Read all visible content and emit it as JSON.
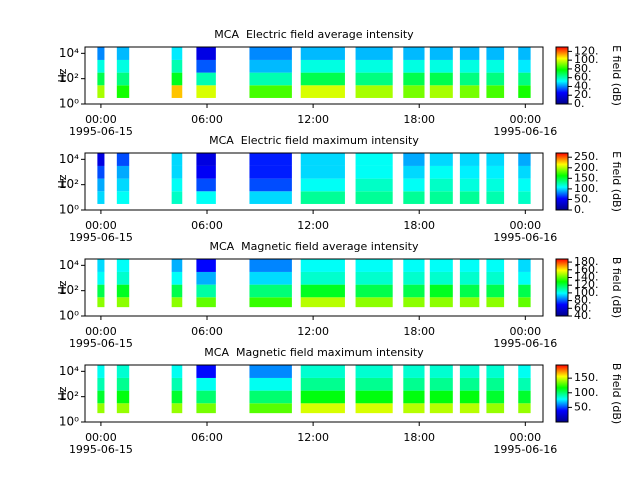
{
  "chart_data": [
    {
      "type": "spectrogram",
      "title": "MCA  Electric field average intensity",
      "ylabel": "Hz",
      "colorbar_label": "E field (dB)",
      "xlim": [
        -0.9,
        25
      ],
      "xticks": [
        {
          "value": 0,
          "label": "00:00"
        },
        {
          "value": 6,
          "label": "06:00"
        },
        {
          "value": 12,
          "label": "12:00"
        },
        {
          "value": 18,
          "label": "18:00"
        },
        {
          "value": 24,
          "label": "00:00"
        }
      ],
      "date_labels": [
        {
          "value": 0,
          "label": "1995-06-15"
        },
        {
          "value": 24,
          "label": "1995-06-16"
        }
      ],
      "log_y": true,
      "ylim": [
        1,
        31623
      ],
      "yticks": [
        {
          "value": 1,
          "label": "10⁰"
        },
        {
          "value": 100,
          "label": "10²"
        },
        {
          "value": 10000,
          "label": "10⁴"
        }
      ],
      "clim": [
        0,
        130
      ],
      "cticks": [
        {
          "value": 0,
          "label": "0."
        },
        {
          "value": 20,
          "label": "20."
        },
        {
          "value": 40,
          "label": "40."
        },
        {
          "value": 60,
          "label": "60."
        },
        {
          "value": 80,
          "label": "80."
        },
        {
          "value": 100,
          "label": "100."
        },
        {
          "value": 120,
          "label": "120."
        }
      ],
      "colormap": [
        "#00008b",
        "#0000ff",
        "#00ffff",
        "#00ff00",
        "#ffff00",
        "#ff0000"
      ],
      "segments": [
        [
          -0.2,
          0.2
        ],
        [
          0.9,
          1.6
        ],
        [
          4.0,
          4.6
        ],
        [
          5.4,
          6.5
        ],
        [
          8.4,
          10.8
        ],
        [
          11.3,
          13.8
        ],
        [
          14.4,
          16.5
        ],
        [
          17.1,
          18.3
        ],
        [
          18.6,
          19.9
        ],
        [
          20.3,
          21.4
        ],
        [
          21.8,
          22.8
        ],
        [
          23.6,
          24.3
        ]
      ],
      "freq_edges": [
        3,
        30,
        300,
        3000,
        30000
      ],
      "z": [
        [
          95,
          70,
          55,
          40
        ],
        [
          80,
          65,
          55,
          45
        ],
        [
          110,
          75,
          60,
          50
        ],
        [
          100,
          60,
          35,
          20
        ],
        [
          85,
          60,
          45,
          40
        ],
        [
          100,
          70,
          55,
          45
        ],
        [
          95,
          65,
          55,
          45
        ],
        [
          90,
          70,
          55,
          45
        ],
        [
          95,
          70,
          55,
          45
        ],
        [
          90,
          65,
          55,
          45
        ],
        [
          85,
          65,
          55,
          45
        ],
        [
          80,
          65,
          50,
          45
        ]
      ]
    },
    {
      "type": "spectrogram",
      "title": "MCA  Electric field maximum intensity",
      "ylabel": "Hz",
      "colorbar_label": "E field (dB)",
      "xlim": [
        -0.9,
        25
      ],
      "xticks": [
        {
          "value": 0,
          "label": "00:00"
        },
        {
          "value": 6,
          "label": "06:00"
        },
        {
          "value": 12,
          "label": "12:00"
        },
        {
          "value": 18,
          "label": "18:00"
        },
        {
          "value": 24,
          "label": "00:00"
        }
      ],
      "date_labels": [
        {
          "value": 0,
          "label": "1995-06-15"
        },
        {
          "value": 24,
          "label": "1995-06-16"
        }
      ],
      "log_y": true,
      "ylim": [
        1,
        31623
      ],
      "yticks": [
        {
          "value": 1,
          "label": "10⁰"
        },
        {
          "value": 100,
          "label": "10²"
        },
        {
          "value": 10000,
          "label": "10⁴"
        }
      ],
      "clim": [
        0,
        270
      ],
      "cticks": [
        {
          "value": 0,
          "label": "0."
        },
        {
          "value": 50,
          "label": "50."
        },
        {
          "value": 100,
          "label": "100."
        },
        {
          "value": 150,
          "label": "150."
        },
        {
          "value": 200,
          "label": "200."
        },
        {
          "value": 250,
          "label": "250."
        }
      ],
      "colormap": [
        "#00008b",
        "#0000ff",
        "#00ffff",
        "#00ff00",
        "#ffff00",
        "#ff0000"
      ],
      "segments": [
        [
          -0.2,
          0.2
        ],
        [
          0.9,
          1.6
        ],
        [
          4.0,
          4.6
        ],
        [
          5.4,
          6.5
        ],
        [
          8.4,
          10.8
        ],
        [
          11.3,
          13.8
        ],
        [
          14.4,
          16.5
        ],
        [
          17.1,
          18.3
        ],
        [
          18.6,
          19.9
        ],
        [
          20.3,
          21.4
        ],
        [
          21.8,
          22.8
        ],
        [
          23.6,
          24.3
        ]
      ],
      "freq_edges": [
        3,
        30,
        300,
        3000,
        30000
      ],
      "z": [
        [
          100,
          90,
          70,
          40
        ],
        [
          110,
          100,
          90,
          70
        ],
        [
          120,
          110,
          100,
          100
        ],
        [
          110,
          70,
          50,
          40
        ],
        [
          100,
          70,
          60,
          60
        ],
        [
          130,
          110,
          100,
          100
        ],
        [
          130,
          120,
          110,
          110
        ],
        [
          130,
          110,
          100,
          90
        ],
        [
          130,
          120,
          110,
          100
        ],
        [
          130,
          115,
          105,
          100
        ],
        [
          125,
          115,
          105,
          100
        ],
        [
          120,
          110,
          100,
          90
        ]
      ]
    },
    {
      "type": "spectrogram",
      "title": "MCA  Magnetic field average intensity",
      "ylabel": "Hz",
      "colorbar_label": "B field (dB)",
      "xlim": [
        -0.9,
        25
      ],
      "xticks": [
        {
          "value": 0,
          "label": "00:00"
        },
        {
          "value": 6,
          "label": "06:00"
        },
        {
          "value": 12,
          "label": "12:00"
        },
        {
          "value": 18,
          "label": "18:00"
        },
        {
          "value": 24,
          "label": "00:00"
        }
      ],
      "date_labels": [
        {
          "value": 0,
          "label": "1995-06-15"
        },
        {
          "value": 24,
          "label": "1995-06-16"
        }
      ],
      "log_y": true,
      "ylim": [
        1,
        31623
      ],
      "yticks": [
        {
          "value": 1,
          "label": "10⁰"
        },
        {
          "value": 100,
          "label": "10²"
        },
        {
          "value": 10000,
          "label": "10⁴"
        }
      ],
      "clim": [
        40,
        188
      ],
      "cticks": [
        {
          "value": 40,
          "label": "40."
        },
        {
          "value": 60,
          "label": "60."
        },
        {
          "value": 80,
          "label": "80."
        },
        {
          "value": 100,
          "label": "100."
        },
        {
          "value": 120,
          "label": "120."
        },
        {
          "value": 140,
          "label": "140."
        },
        {
          "value": 160,
          "label": "160."
        },
        {
          "value": 180,
          "label": "180."
        }
      ],
      "colormap": [
        "#00008b",
        "#0000ff",
        "#00ffff",
        "#00ff00",
        "#ffff00",
        "#ff0000"
      ],
      "segments": [
        [
          -0.2,
          0.2
        ],
        [
          0.9,
          1.6
        ],
        [
          4.0,
          4.6
        ],
        [
          5.4,
          6.5
        ],
        [
          8.4,
          10.8
        ],
        [
          11.3,
          13.8
        ],
        [
          14.4,
          16.5
        ],
        [
          17.1,
          18.3
        ],
        [
          18.6,
          19.9
        ],
        [
          20.3,
          21.4
        ],
        [
          21.8,
          22.8
        ],
        [
          23.6,
          24.3
        ]
      ],
      "freq_edges": [
        5,
        30,
        300,
        3000,
        30000
      ],
      "z": [
        [
          145,
          120,
          100,
          95
        ],
        [
          145,
          125,
          105,
          100
        ],
        [
          145,
          120,
          100,
          90
        ],
        [
          140,
          110,
          90,
          70
        ],
        [
          135,
          115,
          95,
          85
        ],
        [
          150,
          125,
          105,
          100
        ],
        [
          145,
          120,
          105,
          100
        ],
        [
          145,
          120,
          105,
          100
        ],
        [
          145,
          125,
          105,
          100
        ],
        [
          145,
          120,
          105,
          100
        ],
        [
          145,
          120,
          105,
          100
        ],
        [
          140,
          120,
          100,
          95
        ]
      ]
    },
    {
      "type": "spectrogram",
      "title": "MCA  Magnetic field maximum intensity",
      "ylabel": "Hz",
      "colorbar_label": "B field (dB)",
      "xlim": [
        -0.9,
        25
      ],
      "xticks": [
        {
          "value": 0,
          "label": "00:00"
        },
        {
          "value": 6,
          "label": "06:00"
        },
        {
          "value": 12,
          "label": "12:00"
        },
        {
          "value": 18,
          "label": "18:00"
        },
        {
          "value": 24,
          "label": "00:00"
        }
      ],
      "date_labels": [
        {
          "value": 0,
          "label": "1995-06-15"
        },
        {
          "value": 24,
          "label": "1995-06-16"
        }
      ],
      "log_y": true,
      "ylim": [
        1,
        31623
      ],
      "yticks": [
        {
          "value": 1,
          "label": "10⁰"
        },
        {
          "value": 100,
          "label": "10²"
        },
        {
          "value": 10000,
          "label": "10⁴"
        }
      ],
      "clim": [
        0,
        195
      ],
      "cticks": [
        {
          "value": 50,
          "label": "50."
        },
        {
          "value": 100,
          "label": "100."
        },
        {
          "value": 150,
          "label": "150."
        }
      ],
      "colormap": [
        "#00008b",
        "#0000ff",
        "#00ffff",
        "#00ff00",
        "#ffff00",
        "#ff0000"
      ],
      "segments": [
        [
          -0.2,
          0.2
        ],
        [
          0.9,
          1.6
        ],
        [
          4.0,
          4.6
        ],
        [
          5.4,
          6.5
        ],
        [
          8.4,
          10.8
        ],
        [
          11.3,
          13.8
        ],
        [
          14.4,
          16.5
        ],
        [
          17.1,
          18.3
        ],
        [
          18.6,
          19.9
        ],
        [
          20.3,
          21.4
        ],
        [
          21.8,
          22.8
        ],
        [
          23.6,
          24.3
        ]
      ],
      "freq_edges": [
        5,
        30,
        300,
        3000,
        30000
      ],
      "z": [
        [
          140,
          110,
          90,
          80
        ],
        [
          140,
          115,
          95,
          85
        ],
        [
          140,
          110,
          90,
          80
        ],
        [
          135,
          100,
          80,
          40
        ],
        [
          130,
          100,
          80,
          60
        ],
        [
          150,
          115,
          95,
          85
        ],
        [
          150,
          115,
          95,
          85
        ],
        [
          145,
          115,
          95,
          85
        ],
        [
          145,
          115,
          95,
          85
        ],
        [
          145,
          115,
          95,
          85
        ],
        [
          140,
          110,
          95,
          85
        ],
        [
          140,
          110,
          90,
          80
        ]
      ]
    }
  ]
}
